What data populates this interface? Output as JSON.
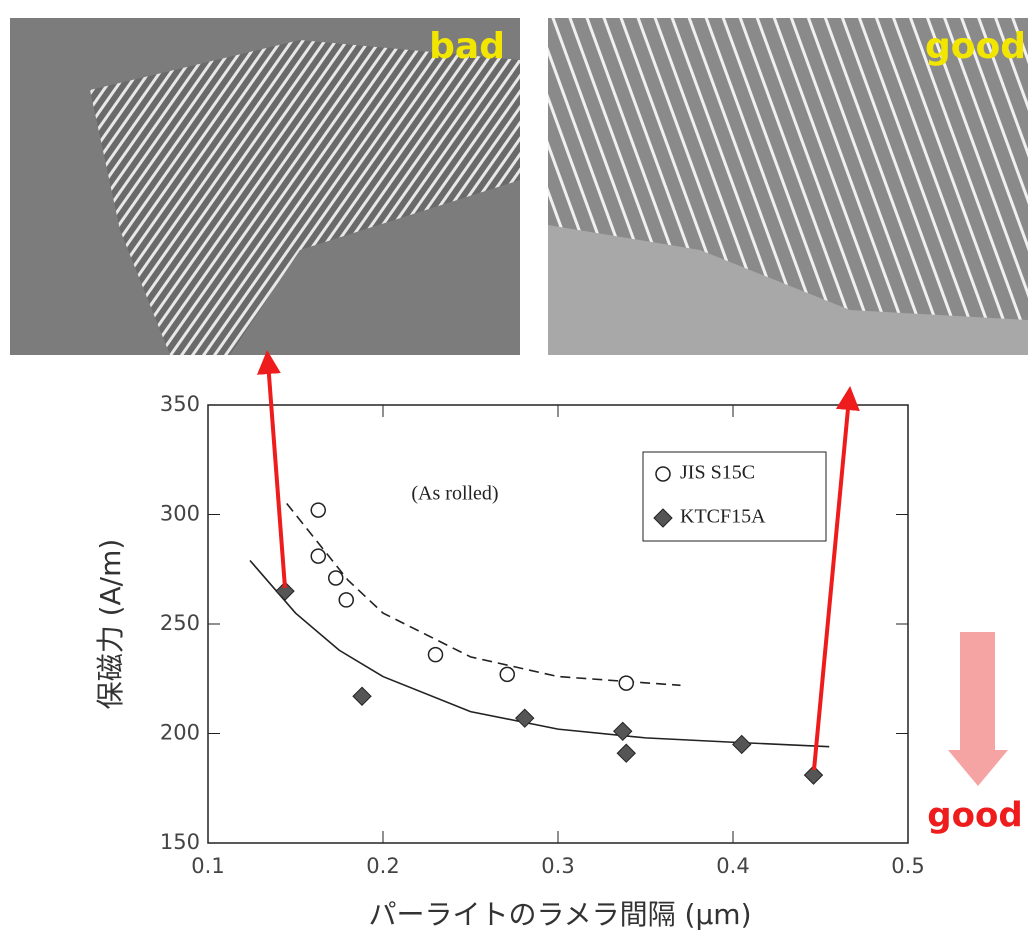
{
  "chart_data": {
    "type": "scatter",
    "image_labels": [
      "bad",
      "good"
    ],
    "annotation": "(As rolled)",
    "direction_label": "good",
    "x_label": "パーライトのラメラ間隔 (μm)",
    "y_label": "保磁力 (A/m)",
    "xlim": [
      0.1,
      0.5
    ],
    "xticks": [
      0.1,
      0.2,
      0.3,
      0.4,
      0.5
    ],
    "ylim": [
      150,
      350
    ],
    "yticks": [
      150,
      200,
      250,
      300,
      350
    ],
    "series": [
      {
        "name": "JIS S15C",
        "marker": "circle",
        "color": "#ffffff",
        "x": [
          0.163,
          0.163,
          0.173,
          0.179,
          0.23,
          0.271,
          0.339
        ],
        "values": [
          302,
          281,
          271,
          261,
          236,
          227,
          223
        ]
      },
      {
        "name": "KTCF15A",
        "marker": "diamond",
        "color": "#555555",
        "x": [
          0.144,
          0.188,
          0.281,
          0.337,
          0.339,
          0.405,
          0.446
        ],
        "values": [
          265,
          217,
          207,
          201,
          191,
          195,
          181
        ]
      }
    ],
    "fit_curves": [
      {
        "style": "dashed",
        "x": [
          0.145,
          0.16,
          0.18,
          0.2,
          0.25,
          0.3,
          0.37
        ],
        "values": [
          305,
          290,
          270,
          255,
          235,
          226,
          222
        ]
      },
      {
        "style": "solid",
        "x": [
          0.124,
          0.15,
          0.175,
          0.2,
          0.25,
          0.3,
          0.35,
          0.4,
          0.455
        ],
        "values": [
          279,
          255,
          238,
          226,
          210,
          202,
          198,
          196,
          194
        ]
      }
    ]
  }
}
